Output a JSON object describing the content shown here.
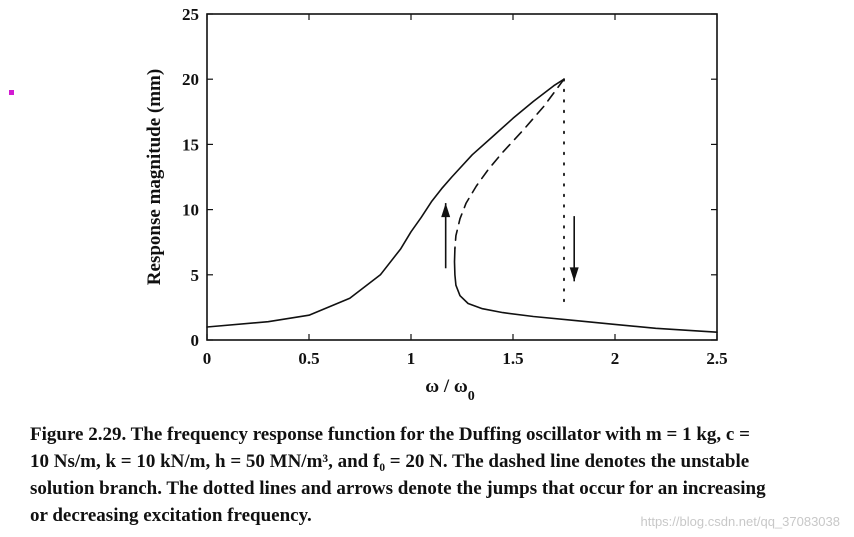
{
  "chart_data": {
    "type": "line",
    "xlabel": "ω / ω",
    "xlabel_sub": "0",
    "ylabel": "Response magnitude (mm)",
    "xlim": [
      0,
      2.5
    ],
    "ylim": [
      0,
      25
    ],
    "x_ticks": [
      0,
      0.5,
      1,
      1.5,
      2,
      2.5
    ],
    "x_tick_labels": [
      "0",
      "0.5",
      "1",
      "1.5",
      "2",
      "2.5"
    ],
    "y_ticks": [
      0,
      5,
      10,
      15,
      20,
      25
    ],
    "y_tick_labels": [
      "0",
      "5",
      "10",
      "15",
      "20",
      "25"
    ],
    "grid": false,
    "series": [
      {
        "style": "solid",
        "x": [
          0,
          0.3,
          0.5,
          0.7,
          0.85,
          0.95,
          1.0,
          1.05,
          1.1,
          1.15,
          1.2,
          1.3,
          1.4,
          1.5,
          1.6,
          1.7,
          1.75
        ],
        "y": [
          1.0,
          1.4,
          1.9,
          3.2,
          5.0,
          7.0,
          8.3,
          9.4,
          10.6,
          11.6,
          12.5,
          14.2,
          15.6,
          17.0,
          18.3,
          19.5,
          20.0
        ]
      },
      {
        "style": "dashed",
        "x": [
          1.75,
          1.65,
          1.55,
          1.45,
          1.38,
          1.32,
          1.27,
          1.24,
          1.22,
          1.215
        ],
        "y": [
          20.0,
          17.9,
          16.1,
          14.4,
          13.1,
          11.8,
          10.5,
          9.3,
          8.0,
          7.0
        ]
      },
      {
        "style": "solid",
        "x": [
          1.215,
          1.213,
          1.215,
          1.22,
          1.24,
          1.28,
          1.35,
          1.45,
          1.6,
          1.8,
          2.0,
          2.2,
          2.5
        ],
        "y": [
          7.0,
          6.0,
          5.0,
          4.2,
          3.4,
          2.8,
          2.4,
          2.1,
          1.8,
          1.5,
          1.2,
          0.9,
          0.6
        ]
      },
      {
        "style": "dotted",
        "x": [
          1.75,
          1.75
        ],
        "y": [
          20.0,
          2.5
        ]
      }
    ],
    "annotations": [
      {
        "type": "arrow",
        "direction": "up",
        "x": 1.17,
        "y_from": 5.5,
        "y_to": 10.5
      },
      {
        "type": "arrow",
        "direction": "down",
        "x": 1.8,
        "y_from": 9.5,
        "y_to": 4.5
      }
    ]
  },
  "caption": {
    "lines": [
      "Figure 2.29. The frequency response function for the Duffing oscillator with m = 1 kg, c =",
      "10 Ns/m, k = 10 kN/m, h = 50 MN/m³, and f₀ = 20 N. The dashed line denotes the unstable",
      "solution branch. The dotted lines and arrows denote the jumps that occur for an increasing",
      "or decreasing excitation frequency."
    ]
  },
  "watermark": "https://blog.csdn.net/qq_37083038",
  "colors": {
    "ink": "#111111",
    "marker": "#d21ad2"
  }
}
